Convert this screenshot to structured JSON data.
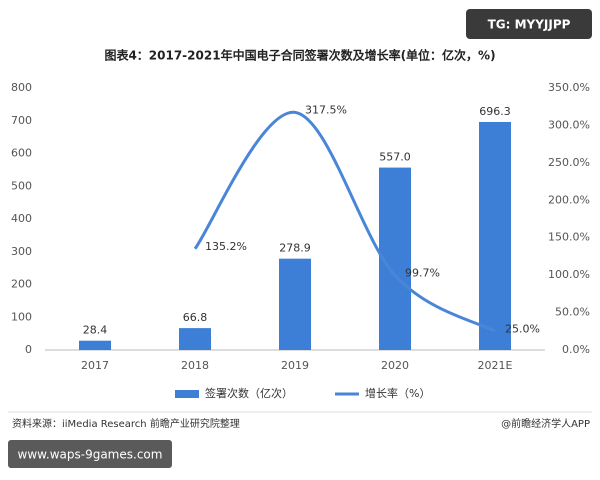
{
  "badge": "TG: MYYJJPP",
  "url": "www.waps-9games.com",
  "source": "资料来源：iiMedia Research 前瞻产业研究院整理",
  "credit": "@前瞻经济学人APP",
  "chart_data": {
    "type": "bar_line",
    "title": "图表4：2017-2021年中国电子合同签署次数及增长率(单位：亿次，%)",
    "categories": [
      "2017",
      "2018",
      "2019",
      "2020",
      "2021E"
    ],
    "series": [
      {
        "name": "签署次数（亿次）",
        "color": "#3d7fd6",
        "values": [
          28.4,
          66.8,
          278.9,
          557.0,
          696.3
        ],
        "value_labels": [
          "28.4",
          "66.8",
          "278.9",
          "557.0",
          "696.3"
        ]
      },
      {
        "name": "增长率（%）",
        "color": "#4a86d8",
        "axis": "y2",
        "values": [
          null,
          135.2,
          317.5,
          99.7,
          25.0
        ],
        "value_labels": [
          null,
          "135.2%",
          "317.5%",
          "99.7%",
          "25.0%"
        ]
      }
    ],
    "ylim": [
      0,
      800
    ],
    "yticks": [
      0,
      100,
      200,
      300,
      400,
      500,
      600,
      700,
      800
    ],
    "y2lim": [
      0,
      350
    ],
    "y2ticks": [
      {
        "value": 0,
        "label": "0.0%"
      },
      {
        "value": 50,
        "label": "50.0%"
      },
      {
        "value": 100,
        "label": "100.0%"
      },
      {
        "value": 150,
        "label": "150.0%"
      },
      {
        "value": 200,
        "label": "200.0%"
      },
      {
        "value": 250,
        "label": "250.0%"
      },
      {
        "value": 300,
        "label": "300.0%"
      },
      {
        "value": 350,
        "label": "350.0%"
      }
    ]
  }
}
